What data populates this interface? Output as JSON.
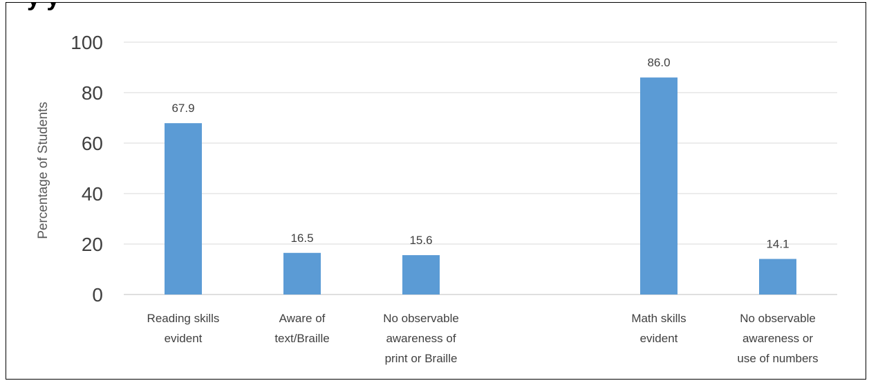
{
  "header": {
    "cut_off_title": "y        y"
  },
  "chart_data": {
    "type": "bar",
    "title": "",
    "ylabel": "Percentage of Students",
    "ylim": [
      0,
      100
    ],
    "yticks": [
      0,
      20,
      40,
      60,
      80,
      100
    ],
    "grid": true,
    "categories": [
      [
        "Reading skills",
        "evident"
      ],
      [
        "Aware of",
        "text/Braille"
      ],
      [
        "No observable",
        "awareness of",
        "print or Braille"
      ],
      [],
      [
        "Math skills",
        "evident"
      ],
      [
        "No observable",
        "awareness or",
        "use of numbers"
      ]
    ],
    "values": [
      67.9,
      16.5,
      15.6,
      null,
      86.0,
      14.1
    ],
    "data_labels": [
      "67.9",
      "16.5",
      "15.6",
      "",
      "86.0",
      "14.1"
    ],
    "bar_color": "#5b9bd5"
  }
}
